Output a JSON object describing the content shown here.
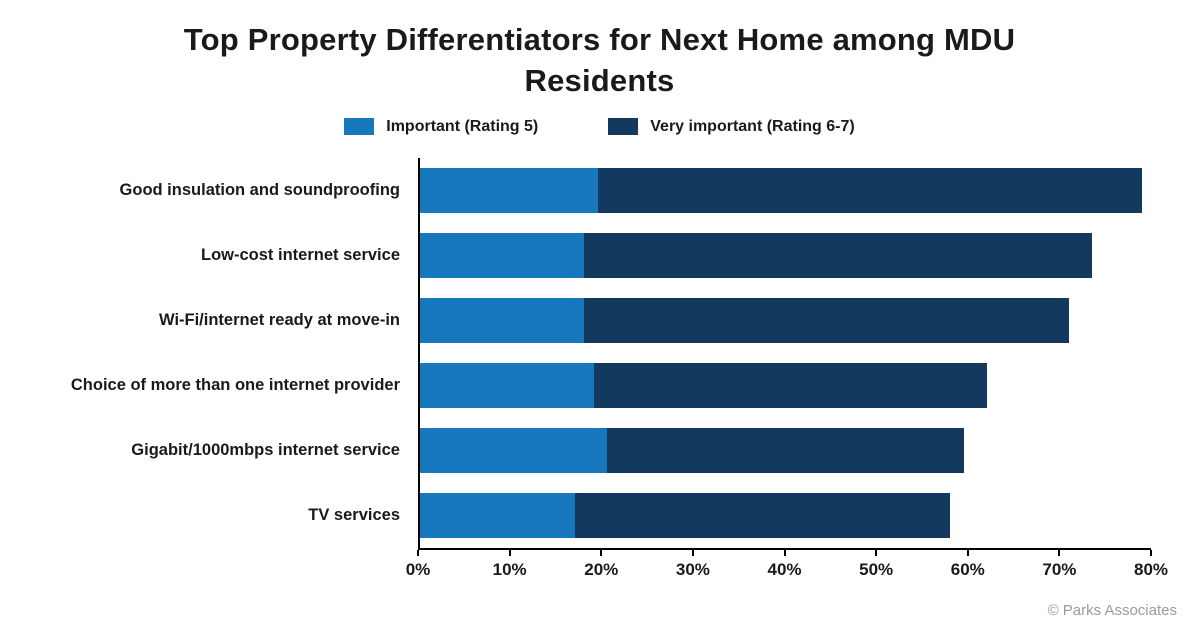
{
  "page": {
    "footer_credit": "© Parks Associates"
  },
  "chart_data": {
    "type": "bar",
    "orientation": "horizontal",
    "stacked": true,
    "title": "Top Property Differentiators for Next Home among MDU Residents",
    "categories": [
      "Good insulation and soundproofing",
      "Low-cost internet service",
      "Wi-Fi/internet ready at move-in",
      "Choice of more than one internet provider",
      "Gigabit/1000mbps internet service",
      "TV services"
    ],
    "series": [
      {
        "name": "Important (Rating 5)",
        "color": "#1878be",
        "values": [
          19.5,
          18,
          18,
          19,
          20.5,
          17
        ]
      },
      {
        "name": "Very important  (Rating 6-7)",
        "color": "#133a5e",
        "values": [
          59.5,
          55.5,
          53,
          43,
          39,
          41
        ]
      }
    ],
    "totals": [
      79,
      73.5,
      71,
      62,
      59.5,
      58
    ],
    "xlabel": "",
    "ylabel": "",
    "xlim": [
      0,
      80
    ],
    "x_ticks": [
      "0%",
      "10%",
      "20%",
      "30%",
      "40%",
      "50%",
      "60%",
      "70%",
      "80%"
    ],
    "legend_position": "top",
    "grid": false,
    "axis_color": "#000000",
    "background_color": "#ffffff"
  }
}
